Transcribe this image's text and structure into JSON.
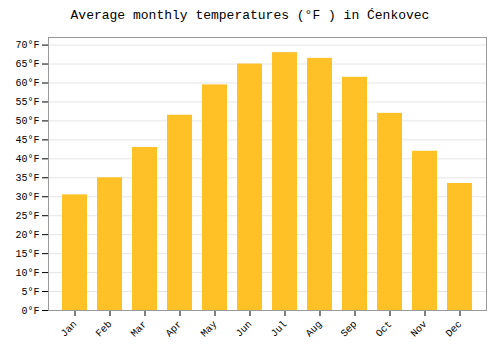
{
  "chart_data": {
    "type": "bar",
    "title": "Average monthly temperatures (°F ) in Ćenkovec",
    "categories": [
      "Jan",
      "Feb",
      "Mar",
      "Apr",
      "May",
      "Jun",
      "Jul",
      "Aug",
      "Sep",
      "Oct",
      "Nov",
      "Dec"
    ],
    "values": [
      30.5,
      35.0,
      43.0,
      51.5,
      59.5,
      65.0,
      68.0,
      66.5,
      61.5,
      52.0,
      42.0,
      33.5
    ],
    "color": "#FFC125",
    "ylim": [
      0,
      72
    ],
    "yticks": [
      {
        "value": 0,
        "label": "0°F"
      },
      {
        "value": 5,
        "label": "5°F"
      },
      {
        "value": 10,
        "label": "10°F"
      },
      {
        "value": 15,
        "label": "15°F"
      },
      {
        "value": 20,
        "label": "20°F"
      },
      {
        "value": 25,
        "label": "25°F"
      },
      {
        "value": 30,
        "label": "30°F"
      },
      {
        "value": 35,
        "label": "35°F"
      },
      {
        "value": 40,
        "label": "40°F"
      },
      {
        "value": 45,
        "label": "45°F"
      },
      {
        "value": 50,
        "label": "50°F"
      },
      {
        "value": 55,
        "label": "55°F"
      },
      {
        "value": 60,
        "label": "60°F"
      },
      {
        "value": 65,
        "label": "65°F"
      },
      {
        "value": 70,
        "label": "70°F"
      }
    ],
    "grid": true
  }
}
